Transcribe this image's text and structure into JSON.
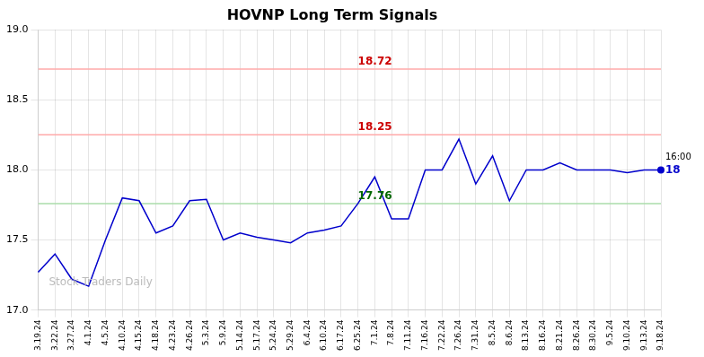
{
  "chart_data": {
    "type": "line",
    "title": "HOVNP Long Term Signals",
    "categories": [
      "3.19.24",
      "3.22.24",
      "3.27.24",
      "4.1.24",
      "4.5.24",
      "4.10.24",
      "4.15.24",
      "4.18.24",
      "4.23.24",
      "4.26.24",
      "5.3.24",
      "5.9.24",
      "5.14.24",
      "5.17.24",
      "5.24.24",
      "5.29.24",
      "6.4.24",
      "6.10.24",
      "6.17.24",
      "6.25.24",
      "7.1.24",
      "7.8.24",
      "7.11.24",
      "7.16.24",
      "7.22.24",
      "7.26.24",
      "7.31.24",
      "8.5.24",
      "8.6.24",
      "8.13.24",
      "8.16.24",
      "8.21.24",
      "8.26.24",
      "8.30.24",
      "9.5.24",
      "9.10.24",
      "9.13.24",
      "9.18.24"
    ],
    "values": [
      17.27,
      17.4,
      17.22,
      17.17,
      17.5,
      17.8,
      17.78,
      17.55,
      17.6,
      17.78,
      17.79,
      17.5,
      17.55,
      17.52,
      17.5,
      17.48,
      17.55,
      17.57,
      17.6,
      17.76,
      17.95,
      17.65,
      17.65,
      18.0,
      18.0,
      18.22,
      17.9,
      18.1,
      17.78,
      18.0,
      18.0,
      18.05,
      18.0,
      18.0,
      18.0,
      17.98,
      18.0,
      18.0
    ],
    "color": "#0000cc",
    "ylim": [
      17,
      19
    ],
    "yticks": [
      {
        "value": 17,
        "label": "17.0"
      },
      {
        "value": 17.5,
        "label": "17.5"
      },
      {
        "value": 18,
        "label": "18.0"
      },
      {
        "value": 18.5,
        "label": "18.5"
      },
      {
        "value": 19,
        "label": "19.0"
      }
    ],
    "grid": true,
    "hlines": [
      {
        "value": 18.72,
        "label": "18.72",
        "color": "#ffaaaa",
        "label_color": "#cc0000"
      },
      {
        "value": 18.25,
        "label": "18.25",
        "color": "#ffaaaa",
        "label_color": "#cc0000"
      },
      {
        "value": 17.76,
        "label": "17.76",
        "color": "#aaddaa",
        "label_color": "#006600"
      }
    ],
    "annotations": [
      {
        "text": "16:00"
      },
      {
        "text": "18",
        "color": "#0000cc"
      }
    ],
    "watermark": {
      "text": "Stock Traders Daily",
      "color": "#bbbbbb"
    }
  }
}
